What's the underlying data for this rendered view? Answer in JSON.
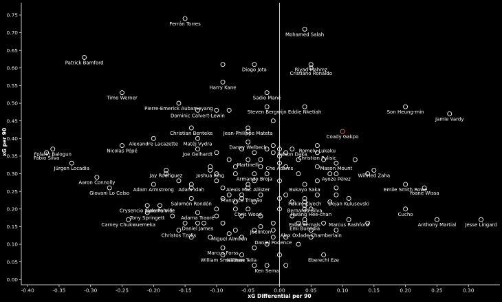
{
  "chart_data": {
    "type": "scatter",
    "title": "",
    "xlabel": "xG Differential per 90",
    "ylabel": "xG per 90",
    "xlim": [
      -0.41,
      0.35
    ],
    "ylim": [
      -0.015,
      0.785
    ],
    "xticks": [
      "-0.40",
      "-0.35",
      "-0.30",
      "-0.25",
      "-0.20",
      "-0.15",
      "-0.10",
      "-0.05",
      "0.00",
      "0.05",
      "0.10",
      "0.15",
      "0.20",
      "0.25",
      "0.30"
    ],
    "yticks": [
      "0.00",
      "0.05",
      "0.10",
      "0.15",
      "0.20",
      "0.25",
      "0.30",
      "0.35",
      "0.40",
      "0.45",
      "0.50",
      "0.55",
      "0.60",
      "0.65",
      "0.70",
      "0.75"
    ],
    "grid": false,
    "colors": {
      "background": "#000000",
      "marker": "#ffffff",
      "highlight": "#ff6b6b",
      "zero_line": "#ffffff"
    },
    "points": [
      {
        "x": -0.15,
        "y": 0.74,
        "label": "Ferrán Torres"
      },
      {
        "x": 0.04,
        "y": 0.71,
        "label": "Mohamed Salah"
      },
      {
        "x": -0.31,
        "y": 0.63,
        "label": "Patrick Bamford"
      },
      {
        "x": 0.05,
        "y": 0.61,
        "label": "Riyad Mahrez"
      },
      {
        "x": -0.04,
        "y": 0.61,
        "label": "Diogo Jota"
      },
      {
        "x": 0.05,
        "y": 0.6,
        "label": "Cristiano Ronaldo"
      },
      {
        "x": -0.09,
        "y": 0.56,
        "label": "Harry Kane"
      },
      {
        "x": -0.25,
        "y": 0.53,
        "label": "Timo Werner"
      },
      {
        "x": -0.02,
        "y": 0.53,
        "label": "Sadio Mané"
      },
      {
        "x": -0.16,
        "y": 0.5,
        "label": "Pierre-Emerick Aubameyang"
      },
      {
        "x": 0.2,
        "y": 0.49,
        "label": "Son Heung-min"
      },
      {
        "x": 0.04,
        "y": 0.49,
        "label": "Eddie Nketiah"
      },
      {
        "x": -0.02,
        "y": 0.49,
        "label": "Steven Bergwijn"
      },
      {
        "x": -0.13,
        "y": 0.48,
        "label": "Dominic Calvert-Lewin"
      },
      {
        "x": 0.27,
        "y": 0.47,
        "label": "Jamie Vardy"
      },
      {
        "x": -0.14,
        "y": 0.43,
        "label": "Christian Benteke"
      },
      {
        "x": -0.05,
        "y": 0.43,
        "label": "Jean-Philippe Mateta"
      },
      {
        "x": 0.1,
        "y": 0.42,
        "label": "Coady Gakpo",
        "highlight": true
      },
      {
        "x": -0.36,
        "y": 0.37,
        "label": "Folarin Balogun"
      },
      {
        "x": -0.2,
        "y": 0.4,
        "label": "Alexandre Lacazette"
      },
      {
        "x": -0.13,
        "y": 0.4,
        "label": "Matěj Vydra"
      },
      {
        "x": -0.05,
        "y": 0.39,
        "label": "Danny Welbeck"
      },
      {
        "x": 0.06,
        "y": 0.38,
        "label": "Romelu Lukaku"
      },
      {
        "x": -0.25,
        "y": 0.38,
        "label": "Nicolas Pépé"
      },
      {
        "x": 0.02,
        "y": 0.37,
        "label": "Patson Daka"
      },
      {
        "x": 0.06,
        "y": 0.36,
        "label": "Christian Pulisic"
      },
      {
        "x": -0.13,
        "y": 0.37,
        "label": "Joe Gelhardt"
      },
      {
        "x": -0.37,
        "y": 0.36,
        "label": "Fábio Silva"
      },
      {
        "x": -0.05,
        "y": 0.34,
        "label": "Martinelli"
      },
      {
        "x": -0.33,
        "y": 0.33,
        "label": "Jürgen Locadia"
      },
      {
        "x": 0.0,
        "y": 0.33,
        "label": "Che Adams"
      },
      {
        "x": 0.09,
        "y": 0.33,
        "label": "Mason Mount"
      },
      {
        "x": -0.11,
        "y": 0.31,
        "label": "Joshua King"
      },
      {
        "x": -0.18,
        "y": 0.31,
        "label": "Jay Rodriguez"
      },
      {
        "x": 0.15,
        "y": 0.31,
        "label": "Wilfried Zaha"
      },
      {
        "x": -0.04,
        "y": 0.3,
        "label": "Armando Broja"
      },
      {
        "x": 0.09,
        "y": 0.3,
        "label": "Ayoze Pérez"
      },
      {
        "x": -0.29,
        "y": 0.29,
        "label": "Aaron Connolly"
      },
      {
        "x": -0.14,
        "y": 0.27,
        "label": "Adam Idah"
      },
      {
        "x": -0.2,
        "y": 0.27,
        "label": "Adam Armstrong"
      },
      {
        "x": -0.05,
        "y": 0.27,
        "label": "Alexis Mac Allister"
      },
      {
        "x": 0.04,
        "y": 0.27,
        "label": "Bukayo Saka"
      },
      {
        "x": 0.2,
        "y": 0.27,
        "label": "Emile Smith Rowe"
      },
      {
        "x": -0.27,
        "y": 0.26,
        "label": "Giovani Lo Celso"
      },
      {
        "x": -0.06,
        "y": 0.24,
        "label": "Francisco Trincão"
      },
      {
        "x": 0.23,
        "y": 0.26,
        "label": "Yoane Wissa"
      },
      {
        "x": -0.14,
        "y": 0.23,
        "label": "Salomón Rondón"
      },
      {
        "x": 0.04,
        "y": 0.23,
        "label": "Hakim Ziyech"
      },
      {
        "x": 0.11,
        "y": 0.23,
        "label": "Dejan Kulusevski"
      },
      {
        "x": -0.21,
        "y": 0.21,
        "label": "Crysencio Summerville"
      },
      {
        "x": -0.19,
        "y": 0.21,
        "label": "Cole Palmer"
      },
      {
        "x": 0.04,
        "y": 0.21,
        "label": "Bernardo Silva"
      },
      {
        "x": -0.05,
        "y": 0.2,
        "label": "Chris Wood"
      },
      {
        "x": 0.05,
        "y": 0.2,
        "label": "Hwang Hee-chan"
      },
      {
        "x": 0.2,
        "y": 0.2,
        "label": "Cucho"
      },
      {
        "x": -0.21,
        "y": 0.19,
        "label": "Tony Springett"
      },
      {
        "x": -0.13,
        "y": 0.19,
        "label": "Adama Traoré"
      },
      {
        "x": 0.04,
        "y": 0.17,
        "label": "Fabio Fernals"
      },
      {
        "x": 0.11,
        "y": 0.17,
        "label": "Marcus Rashford"
      },
      {
        "x": -0.24,
        "y": 0.17,
        "label": "Carney Chukwuemeka"
      },
      {
        "x": 0.25,
        "y": 0.17,
        "label": "Anthony Martial"
      },
      {
        "x": 0.32,
        "y": 0.17,
        "label": "Jesse Lingard"
      },
      {
        "x": -0.13,
        "y": 0.16,
        "label": "Daniel James"
      },
      {
        "x": 0.04,
        "y": 0.16,
        "label": "Emi Buendía"
      },
      {
        "x": -0.03,
        "y": 0.15,
        "label": "Joelinton"
      },
      {
        "x": 0.05,
        "y": 0.14,
        "label": "Alex Oxlade-Chamberlain"
      },
      {
        "x": -0.16,
        "y": 0.14,
        "label": "Christos Tzolis"
      },
      {
        "x": -0.08,
        "y": 0.13,
        "label": "Miguel Almirón"
      },
      {
        "x": -0.01,
        "y": 0.12,
        "label": "Daniel Podence"
      },
      {
        "x": -0.09,
        "y": 0.09,
        "label": "Marcus Forss"
      },
      {
        "x": -0.09,
        "y": 0.07,
        "label": "William Smallbone"
      },
      {
        "x": -0.06,
        "y": 0.07,
        "label": "Nathan Tella"
      },
      {
        "x": 0.07,
        "y": 0.07,
        "label": "Eberechi Eze"
      },
      {
        "x": -0.02,
        "y": 0.04,
        "label": "Ken Sema"
      },
      {
        "x": -0.09,
        "y": 0.61
      },
      {
        "x": -0.01,
        "y": 0.45
      },
      {
        "x": -0.1,
        "y": 0.48
      },
      {
        "x": -0.08,
        "y": 0.48
      },
      {
        "x": -0.05,
        "y": 0.42
      },
      {
        "x": -0.01,
        "y": 0.38
      },
      {
        "x": -0.06,
        "y": 0.37
      },
      {
        "x": -0.02,
        "y": 0.37
      },
      {
        "x": 0.0,
        "y": 0.37
      },
      {
        "x": -0.1,
        "y": 0.36
      },
      {
        "x": -0.04,
        "y": 0.36
      },
      {
        "x": -0.01,
        "y": 0.36
      },
      {
        "x": 0.01,
        "y": 0.36
      },
      {
        "x": 0.0,
        "y": 0.35
      },
      {
        "x": -0.08,
        "y": 0.34
      },
      {
        "x": -0.03,
        "y": 0.34
      },
      {
        "x": 0.03,
        "y": 0.34
      },
      {
        "x": 0.07,
        "y": 0.34
      },
      {
        "x": 0.12,
        "y": 0.34
      },
      {
        "x": -0.11,
        "y": 0.32
      },
      {
        "x": -0.07,
        "y": 0.32
      },
      {
        "x": -0.03,
        "y": 0.32
      },
      {
        "x": 0.01,
        "y": 0.32
      },
      {
        "x": 0.06,
        "y": 0.32
      },
      {
        "x": -0.18,
        "y": 0.3
      },
      {
        "x": -0.1,
        "y": 0.3
      },
      {
        "x": -0.07,
        "y": 0.3
      },
      {
        "x": -0.02,
        "y": 0.3
      },
      {
        "x": 0.03,
        "y": 0.3
      },
      {
        "x": 0.08,
        "y": 0.3
      },
      {
        "x": 0.14,
        "y": 0.3
      },
      {
        "x": -0.16,
        "y": 0.28
      },
      {
        "x": -0.1,
        "y": 0.28
      },
      {
        "x": -0.04,
        "y": 0.28
      },
      {
        "x": 0.0,
        "y": 0.28
      },
      {
        "x": 0.06,
        "y": 0.28
      },
      {
        "x": -0.14,
        "y": 0.26
      },
      {
        "x": -0.09,
        "y": 0.26
      },
      {
        "x": -0.05,
        "y": 0.26
      },
      {
        "x": 0.09,
        "y": 0.26
      },
      {
        "x": -0.08,
        "y": 0.24
      },
      {
        "x": -0.03,
        "y": 0.24
      },
      {
        "x": 0.01,
        "y": 0.24
      },
      {
        "x": 0.06,
        "y": 0.24
      },
      {
        "x": 0.09,
        "y": 0.24
      },
      {
        "x": -0.09,
        "y": 0.23
      },
      {
        "x": -0.06,
        "y": 0.23
      },
      {
        "x": 0.0,
        "y": 0.23
      },
      {
        "x": 0.04,
        "y": 0.22
      },
      {
        "x": -0.07,
        "y": 0.22
      },
      {
        "x": -0.04,
        "y": 0.22
      },
      {
        "x": 0.02,
        "y": 0.22
      },
      {
        "x": 0.08,
        "y": 0.22
      },
      {
        "x": -0.1,
        "y": 0.2
      },
      {
        "x": -0.07,
        "y": 0.2
      },
      {
        "x": 0.0,
        "y": 0.2
      },
      {
        "x": 0.04,
        "y": 0.2
      },
      {
        "x": -0.17,
        "y": 0.18
      },
      {
        "x": -0.1,
        "y": 0.18
      },
      {
        "x": -0.06,
        "y": 0.18
      },
      {
        "x": -0.03,
        "y": 0.18
      },
      {
        "x": 0.02,
        "y": 0.18
      },
      {
        "x": -0.15,
        "y": 0.16
      },
      {
        "x": -0.12,
        "y": 0.16
      },
      {
        "x": -0.09,
        "y": 0.16
      },
      {
        "x": -0.01,
        "y": 0.16
      },
      {
        "x": 0.03,
        "y": 0.16
      },
      {
        "x": 0.07,
        "y": 0.16
      },
      {
        "x": 0.14,
        "y": 0.16
      },
      {
        "x": -0.07,
        "y": 0.14
      },
      {
        "x": -0.04,
        "y": 0.14
      },
      {
        "x": -0.01,
        "y": 0.14
      },
      {
        "x": 0.09,
        "y": 0.14
      },
      {
        "x": -0.14,
        "y": 0.12
      },
      {
        "x": -0.11,
        "y": 0.12
      },
      {
        "x": -0.06,
        "y": 0.12
      },
      {
        "x": 0.01,
        "y": 0.12
      },
      {
        "x": 0.05,
        "y": 0.12
      },
      {
        "x": -0.02,
        "y": 0.1
      },
      {
        "x": 0.03,
        "y": 0.1
      },
      {
        "x": -0.04,
        "y": 0.09
      },
      {
        "x": 0.0,
        "y": 0.07
      },
      {
        "x": -0.04,
        "y": 0.04
      },
      {
        "x": 0.01,
        "y": 0.04
      }
    ]
  }
}
